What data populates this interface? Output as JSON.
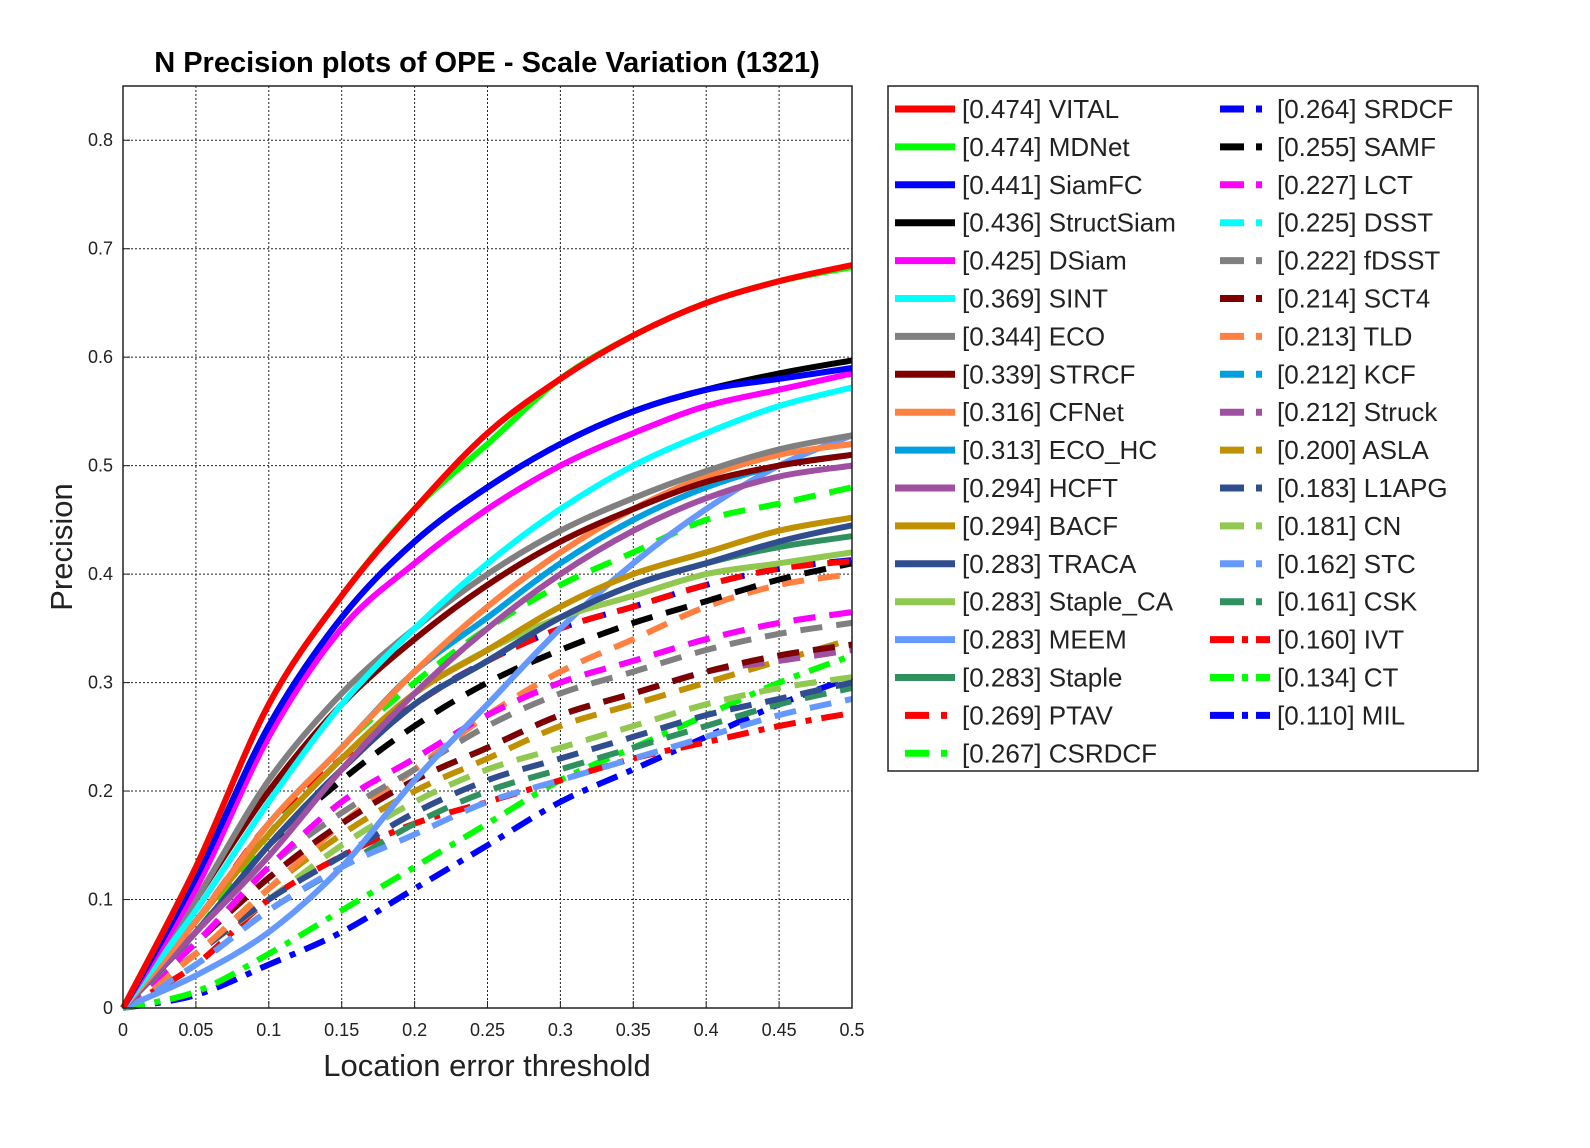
{
  "chart_data": {
    "type": "line",
    "title": "N Precision plots of OPE - Scale Variation (1321)",
    "xlabel": "Location error threshold",
    "ylabel": "Precision",
    "xlim": [
      0,
      0.5
    ],
    "ylim": [
      0,
      0.85
    ],
    "grid": true,
    "legend_position": "outside-right",
    "xticks": [
      0,
      0.05,
      0.1,
      0.15,
      0.2,
      0.25,
      0.3,
      0.35,
      0.4,
      0.45,
      0.5
    ],
    "xtick_labels": [
      "0",
      "0.05",
      "0.1",
      "0.15",
      "0.2",
      "0.25",
      "0.3",
      "0.35",
      "0.4",
      "0.45",
      "0.5"
    ],
    "yticks": [
      0,
      0.1,
      0.2,
      0.3,
      0.4,
      0.5,
      0.6,
      0.7,
      0.8
    ],
    "ytick_labels": [
      "0",
      "0.1",
      "0.2",
      "0.3",
      "0.4",
      "0.5",
      "0.6",
      "0.7",
      "0.8"
    ],
    "x": [
      0,
      0.05,
      0.1,
      0.15,
      0.2,
      0.25,
      0.3,
      0.35,
      0.4,
      0.45,
      0.5
    ],
    "series": [
      {
        "name": "[0.474] VITAL",
        "color": "#ff0000",
        "dash": "solid",
        "values": [
          0,
          0.13,
          0.28,
          0.38,
          0.46,
          0.53,
          0.58,
          0.62,
          0.65,
          0.67,
          0.685
        ]
      },
      {
        "name": "[0.474] MDNet",
        "color": "#00ff00",
        "dash": "solid",
        "values": [
          0,
          0.13,
          0.28,
          0.38,
          0.46,
          0.52,
          0.58,
          0.62,
          0.65,
          0.67,
          0.683
        ]
      },
      {
        "name": "[0.441] SiamFC",
        "color": "#0000ff",
        "dash": "solid",
        "values": [
          0,
          0.12,
          0.26,
          0.36,
          0.43,
          0.48,
          0.52,
          0.55,
          0.57,
          0.58,
          0.59
        ]
      },
      {
        "name": "[0.436] StructSiam",
        "color": "#000000",
        "dash": "solid",
        "values": [
          0,
          0.12,
          0.26,
          0.36,
          0.43,
          0.48,
          0.52,
          0.55,
          0.57,
          0.585,
          0.597
        ]
      },
      {
        "name": "[0.425] DSiam",
        "color": "#ff00ff",
        "dash": "solid",
        "values": [
          0,
          0.11,
          0.25,
          0.35,
          0.41,
          0.46,
          0.5,
          0.53,
          0.555,
          0.57,
          0.585
        ]
      },
      {
        "name": "[0.369] SINT",
        "color": "#00ffff",
        "dash": "solid",
        "values": [
          0,
          0.09,
          0.19,
          0.28,
          0.35,
          0.41,
          0.46,
          0.5,
          0.53,
          0.555,
          0.572
        ]
      },
      {
        "name": "[0.344] ECO",
        "color": "#808080",
        "dash": "solid",
        "values": [
          0,
          0.1,
          0.21,
          0.29,
          0.35,
          0.4,
          0.44,
          0.47,
          0.495,
          0.515,
          0.528
        ]
      },
      {
        "name": "[0.339] STRCF",
        "color": "#800000",
        "dash": "solid",
        "values": [
          0,
          0.1,
          0.2,
          0.28,
          0.34,
          0.39,
          0.43,
          0.46,
          0.485,
          0.5,
          0.51
        ]
      },
      {
        "name": "[0.316] CFNet",
        "color": "#ff8040",
        "dash": "solid",
        "values": [
          0,
          0.08,
          0.17,
          0.24,
          0.31,
          0.37,
          0.42,
          0.46,
          0.49,
          0.51,
          0.52
        ]
      },
      {
        "name": "[0.313] ECO_HC",
        "color": "#00a0e0",
        "dash": "solid",
        "values": [
          0,
          0.08,
          0.17,
          0.24,
          0.31,
          0.36,
          0.41,
          0.45,
          0.48,
          0.5,
          0.51
        ]
      },
      {
        "name": "[0.294] HCFT",
        "color": "#a050a0",
        "dash": "solid",
        "values": [
          0,
          0.07,
          0.14,
          0.22,
          0.29,
          0.35,
          0.4,
          0.44,
          0.47,
          0.49,
          0.5
        ]
      },
      {
        "name": "[0.294] BACF",
        "color": "#c09000",
        "dash": "solid",
        "values": [
          0,
          0.08,
          0.16,
          0.23,
          0.29,
          0.33,
          0.37,
          0.4,
          0.42,
          0.44,
          0.452
        ]
      },
      {
        "name": "[0.283] TRACA",
        "color": "#304d90",
        "dash": "solid",
        "values": [
          0,
          0.07,
          0.15,
          0.22,
          0.28,
          0.32,
          0.36,
          0.39,
          0.41,
          0.43,
          0.445
        ]
      },
      {
        "name": "[0.283] Staple_CA",
        "color": "#90c850",
        "dash": "solid",
        "values": [
          0,
          0.08,
          0.16,
          0.23,
          0.29,
          0.33,
          0.36,
          0.38,
          0.4,
          0.41,
          0.42
        ]
      },
      {
        "name": "[0.283] MEEM",
        "color": "#6699ff",
        "dash": "solid",
        "values": [
          0,
          0.03,
          0.07,
          0.13,
          0.21,
          0.28,
          0.35,
          0.41,
          0.46,
          0.5,
          0.528
        ]
      },
      {
        "name": "[0.283] Staple",
        "color": "#309060",
        "dash": "solid",
        "values": [
          0,
          0.07,
          0.15,
          0.22,
          0.28,
          0.32,
          0.36,
          0.39,
          0.41,
          0.425,
          0.435
        ]
      },
      {
        "name": "[0.269] PTAV",
        "color": "#ff0000",
        "dash": "dash",
        "values": [
          0,
          0.08,
          0.17,
          0.23,
          0.28,
          0.32,
          0.35,
          0.37,
          0.39,
          0.405,
          0.412
        ]
      },
      {
        "name": "[0.267] CSRDCF",
        "color": "#00ff00",
        "dash": "dash",
        "values": [
          0,
          0.07,
          0.16,
          0.24,
          0.3,
          0.35,
          0.39,
          0.42,
          0.45,
          0.465,
          0.48
        ]
      },
      {
        "name": "[0.264] SRDCF",
        "color": "#0000ff",
        "dash": "dash",
        "values": [
          0,
          0.07,
          0.15,
          0.22,
          0.28,
          0.32,
          0.35,
          0.37,
          0.39,
          0.405,
          0.413
        ]
      },
      {
        "name": "[0.255] SAMF",
        "color": "#000000",
        "dash": "dash",
        "values": [
          0,
          0.07,
          0.15,
          0.21,
          0.26,
          0.3,
          0.33,
          0.355,
          0.375,
          0.395,
          0.41
        ]
      },
      {
        "name": "[0.227] LCT",
        "color": "#ff00ff",
        "dash": "dash",
        "values": [
          0,
          0.06,
          0.13,
          0.19,
          0.23,
          0.27,
          0.3,
          0.32,
          0.34,
          0.355,
          0.365
        ]
      },
      {
        "name": "[0.225] DSST",
        "color": "#00ffff",
        "dash": "dash",
        "values": [
          0,
          0.06,
          0.13,
          0.19,
          0.23,
          0.27,
          0.3,
          0.32,
          0.34,
          0.355,
          0.365
        ]
      },
      {
        "name": "[0.222] fDSST",
        "color": "#808080",
        "dash": "dash",
        "values": [
          0,
          0.06,
          0.13,
          0.18,
          0.22,
          0.26,
          0.29,
          0.31,
          0.33,
          0.345,
          0.355
        ]
      },
      {
        "name": "[0.214] SCT4",
        "color": "#800000",
        "dash": "dash",
        "values": [
          0,
          0.06,
          0.12,
          0.17,
          0.21,
          0.24,
          0.27,
          0.29,
          0.31,
          0.325,
          0.335
        ]
      },
      {
        "name": "[0.213] TLD",
        "color": "#ff8040",
        "dash": "dash",
        "values": [
          0,
          0.05,
          0.11,
          0.17,
          0.22,
          0.27,
          0.31,
          0.34,
          0.37,
          0.39,
          0.4
        ]
      },
      {
        "name": "[0.212] KCF",
        "color": "#00a0e0",
        "dash": "dash",
        "values": [
          0,
          0.06,
          0.12,
          0.17,
          0.21,
          0.24,
          0.27,
          0.29,
          0.31,
          0.325,
          0.335
        ]
      },
      {
        "name": "[0.212] Struck",
        "color": "#a050a0",
        "dash": "dash",
        "values": [
          0,
          0.06,
          0.12,
          0.17,
          0.21,
          0.24,
          0.27,
          0.29,
          0.31,
          0.32,
          0.33
        ]
      },
      {
        "name": "[0.200] ASLA",
        "color": "#c09000",
        "dash": "dash",
        "values": [
          0,
          0.05,
          0.11,
          0.16,
          0.2,
          0.23,
          0.26,
          0.28,
          0.3,
          0.32,
          0.34
        ]
      },
      {
        "name": "[0.183] L1APG",
        "color": "#304d90",
        "dash": "dash",
        "values": [
          0,
          0.05,
          0.1,
          0.14,
          0.18,
          0.21,
          0.23,
          0.25,
          0.27,
          0.285,
          0.3
        ]
      },
      {
        "name": "[0.181] CN",
        "color": "#90c850",
        "dash": "dash",
        "values": [
          0,
          0.05,
          0.1,
          0.15,
          0.19,
          0.22,
          0.24,
          0.26,
          0.28,
          0.295,
          0.305
        ]
      },
      {
        "name": "[0.162] STC",
        "color": "#6699ff",
        "dash": "dash",
        "values": [
          0,
          0.04,
          0.09,
          0.13,
          0.16,
          0.19,
          0.21,
          0.23,
          0.25,
          0.27,
          0.285
        ]
      },
      {
        "name": "[0.161] CSK",
        "color": "#309060",
        "dash": "dash",
        "values": [
          0,
          0.04,
          0.09,
          0.13,
          0.17,
          0.2,
          0.22,
          0.24,
          0.26,
          0.28,
          0.295
        ]
      },
      {
        "name": "[0.160] IVT",
        "color": "#ff0000",
        "dash": "dashdot",
        "values": [
          0,
          0.04,
          0.1,
          0.14,
          0.17,
          0.19,
          0.21,
          0.23,
          0.245,
          0.26,
          0.272
        ]
      },
      {
        "name": "[0.134] CT",
        "color": "#00ff00",
        "dash": "dashdot",
        "values": [
          0,
          0.015,
          0.05,
          0.09,
          0.13,
          0.17,
          0.21,
          0.24,
          0.27,
          0.3,
          0.325
        ]
      },
      {
        "name": "[0.110] MIL",
        "color": "#0000ff",
        "dash": "dashdot",
        "values": [
          0,
          0.012,
          0.04,
          0.07,
          0.11,
          0.15,
          0.19,
          0.22,
          0.25,
          0.28,
          0.305
        ]
      }
    ]
  }
}
